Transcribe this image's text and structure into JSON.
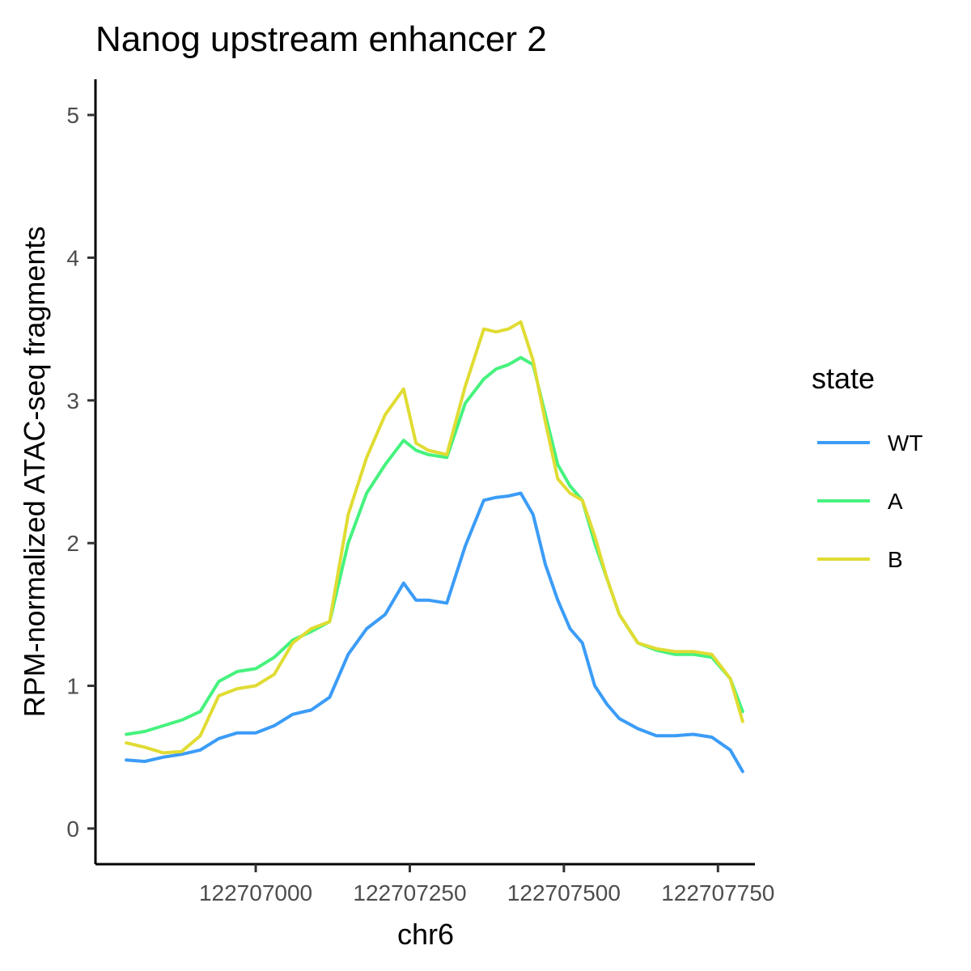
{
  "chart_data": {
    "type": "line",
    "title": "Nanog upstream enhancer 2",
    "xlabel": "chr6",
    "ylabel": "RPM-normalized ATAC-seq fragments",
    "xlim": [
      122706740,
      122707810
    ],
    "ylim": [
      -0.25,
      5.25
    ],
    "x_ticks": [
      122707000,
      122707250,
      122707500,
      122707750
    ],
    "x_tick_labels": [
      "122707000",
      "122707250",
      "122707500",
      "122707750"
    ],
    "y_ticks": [
      0,
      1,
      2,
      3,
      4,
      5
    ],
    "y_tick_labels": [
      "0",
      "1",
      "2",
      "3",
      "4",
      "5"
    ],
    "grid": false,
    "legend": {
      "title": "state",
      "placement": "right"
    },
    "x": [
      122706790,
      122706820,
      122706850,
      122706880,
      122706910,
      122706940,
      122706970,
      122707000,
      122707030,
      122707060,
      122707090,
      122707120,
      122707150,
      122707180,
      122707210,
      122707240,
      122707260,
      122707280,
      122707310,
      122707340,
      122707370,
      122707390,
      122707410,
      122707430,
      122707450,
      122707470,
      122707490,
      122707510,
      122707530,
      122707550,
      122707570,
      122707590,
      122707620,
      122707650,
      122707680,
      122707710,
      122707740,
      122707770,
      122707790
    ],
    "series": [
      {
        "name": "WT",
        "color": "#3b9cf7",
        "values": [
          0.48,
          0.47,
          0.5,
          0.52,
          0.55,
          0.63,
          0.67,
          0.67,
          0.72,
          0.8,
          0.83,
          0.92,
          1.22,
          1.4,
          1.5,
          1.72,
          1.6,
          1.6,
          1.58,
          1.98,
          2.3,
          2.32,
          2.33,
          2.35,
          2.2,
          1.85,
          1.6,
          1.4,
          1.3,
          1.0,
          0.87,
          0.77,
          0.7,
          0.65,
          0.65,
          0.66,
          0.64,
          0.55,
          0.4
        ]
      },
      {
        "name": "A",
        "color": "#46f27e",
        "values": [
          0.66,
          0.68,
          0.72,
          0.76,
          0.82,
          1.03,
          1.1,
          1.12,
          1.2,
          1.32,
          1.38,
          1.45,
          2.0,
          2.35,
          2.55,
          2.72,
          2.65,
          2.62,
          2.6,
          2.98,
          3.15,
          3.22,
          3.25,
          3.3,
          3.25,
          2.9,
          2.55,
          2.4,
          2.3,
          2.0,
          1.75,
          1.5,
          1.3,
          1.25,
          1.22,
          1.22,
          1.2,
          1.05,
          0.82
        ]
      },
      {
        "name": "B",
        "color": "#e0dc33",
        "values": [
          0.6,
          0.57,
          0.53,
          0.54,
          0.65,
          0.93,
          0.98,
          1.0,
          1.08,
          1.3,
          1.4,
          1.45,
          2.2,
          2.6,
          2.9,
          3.08,
          2.7,
          2.65,
          2.62,
          3.1,
          3.5,
          3.48,
          3.5,
          3.55,
          3.28,
          2.85,
          2.45,
          2.35,
          2.3,
          2.05,
          1.75,
          1.5,
          1.3,
          1.26,
          1.24,
          1.24,
          1.22,
          1.05,
          0.75
        ]
      }
    ]
  }
}
